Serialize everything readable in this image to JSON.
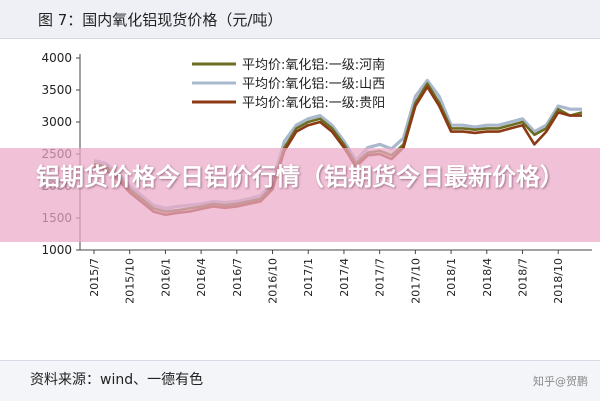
{
  "figure": {
    "title": "图 7：国内氧化铝现货价格（元/吨）",
    "source": "资料来源：wind、一德有色",
    "watermark": "知乎@贺鹏",
    "overlay_text": "铝期货价格今日铝价行情（铝期货今日最新价格）"
  },
  "chart_data": {
    "type": "line",
    "title": "图 7：国内氧化铝现货价格（元/吨）",
    "xlabel": "",
    "ylabel": "",
    "ylim": [
      1000,
      4000
    ],
    "yticks": [
      1000,
      1500,
      2000,
      2500,
      3000,
      3500,
      4000
    ],
    "xlim": [
      "2015/7",
      "2018/12"
    ],
    "xticks": [
      "2015/7",
      "2015/10",
      "2016/1",
      "2016/4",
      "2016/7",
      "2016/10",
      "2017/1",
      "2017/4",
      "2017/7",
      "2017/10",
      "2018/1",
      "2018/4",
      "2018/7",
      "2018/10"
    ],
    "grid": false,
    "legend": "top-center",
    "x": [
      "2015/7",
      "2015/8",
      "2015/9",
      "2015/10",
      "2015/11",
      "2015/12",
      "2016/1",
      "2016/2",
      "2016/3",
      "2016/4",
      "2016/5",
      "2016/6",
      "2016/7",
      "2016/8",
      "2016/9",
      "2016/10",
      "2016/11",
      "2016/12",
      "2017/1",
      "2017/2",
      "2017/3",
      "2017/4",
      "2017/5",
      "2017/6",
      "2017/7",
      "2017/8",
      "2017/9",
      "2017/10",
      "2017/11",
      "2017/12",
      "2018/1",
      "2018/2",
      "2018/3",
      "2018/4",
      "2018/5",
      "2018/6",
      "2018/7",
      "2018/8",
      "2018/9",
      "2018/10",
      "2018/11",
      "2018/12"
    ],
    "series": [
      {
        "name": "平均价:氧化铝:一级:河南",
        "color": "#6b6e22",
        "values": [
          2350,
          2300,
          2150,
          1950,
          1800,
          1650,
          1600,
          1620,
          1650,
          1680,
          1720,
          1700,
          1720,
          1760,
          1800,
          2000,
          2600,
          2900,
          3000,
          3050,
          2900,
          2650,
          2350,
          2520,
          2550,
          2480,
          2650,
          3300,
          3600,
          3300,
          2900,
          2900,
          2880,
          2900,
          2900,
          2950,
          3000,
          2800,
          2900,
          3200,
          3100,
          3150
        ]
      },
      {
        "name": "平均价:氧化铝:一级:山西",
        "color": "#a9b8cc",
        "values": [
          2400,
          2350,
          2200,
          2000,
          1850,
          1700,
          1650,
          1680,
          1700,
          1720,
          1760,
          1740,
          1760,
          1800,
          1850,
          2050,
          2700,
          2950,
          3050,
          3100,
          2950,
          2700,
          2400,
          2600,
          2650,
          2580,
          2750,
          3400,
          3650,
          3400,
          2950,
          2950,
          2920,
          2950,
          2950,
          3000,
          3050,
          2850,
          2950,
          3250,
          3200,
          3200
        ]
      },
      {
        "name": "平均价:氧化铝:一级:贵阳",
        "color": "#8b3a14",
        "values": [
          2300,
          2250,
          2100,
          1900,
          1750,
          1600,
          1550,
          1580,
          1600,
          1640,
          1680,
          1660,
          1680,
          1720,
          1760,
          1950,
          2550,
          2850,
          2950,
          3000,
          2850,
          2600,
          2300,
          2480,
          2500,
          2420,
          2600,
          3250,
          3550,
          3250,
          2850,
          2850,
          2830,
          2850,
          2850,
          2900,
          2950,
          2650,
          2850,
          3150,
          3100,
          3100
        ]
      }
    ]
  }
}
